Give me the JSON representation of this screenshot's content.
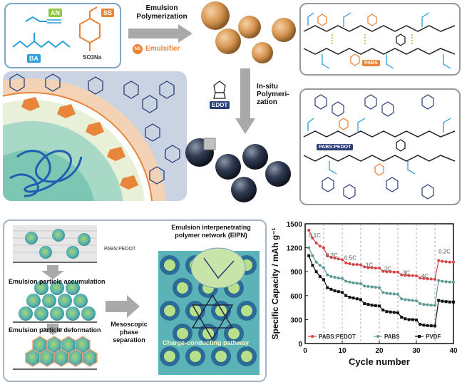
{
  "monomers": {
    "an": "AN",
    "ss": "SS",
    "ba": "BA",
    "so3na": "SO3Na",
    "emulsifier": "Emulsifier",
    "ns": "NS"
  },
  "steps": {
    "emulsion_polymerization": [
      "Emulsion",
      "Polymerization"
    ],
    "edot": "EDOT",
    "insitu_polymerization": [
      "In-situ",
      "Polymeri-",
      "zation"
    ]
  },
  "tags": {
    "pabs": "PABS",
    "pabs_pedot": "PABS:PEDOT",
    "pabs_pedot_small": "PABS:PEDOT",
    "so3": "SO3"
  },
  "eipn": {
    "title": [
      "Emulsion interpenetrating",
      "polymer network (EIPN)"
    ],
    "accumulation": "Emulsion particle accumulation",
    "deformation": "Emulsion particle deformation",
    "mesoscopic": [
      "Mesoscopic",
      "phase",
      "separation"
    ],
    "pathway": "Charge-conducting pathway"
  },
  "colors": {
    "orange": "#e8853a",
    "blue": "#2a9fd8",
    "green_badge": "#8dc63f",
    "panel_border": "#9a9a9a",
    "dark_sphere": "#2a3346",
    "pedot_red": "#d84343",
    "pabs_teal": "#5a9a94",
    "pvdf_black": "#111111"
  },
  "chart_data": {
    "type": "line",
    "xlabel": "Cycle number",
    "ylabel": "Specific Capacity / mAh g⁻¹",
    "xlim": [
      0,
      40
    ],
    "ylim": [
      0,
      1500
    ],
    "xticks": [
      0,
      10,
      20,
      30,
      40
    ],
    "yticks": [
      0,
      300,
      600,
      900,
      1200,
      1500
    ],
    "rate_labels": [
      {
        "text": "0.1C",
        "x": 2.6,
        "y": 1330
      },
      {
        "text": "0.2C",
        "x": 7.2,
        "y": 1080
      },
      {
        "text": "0.5C",
        "x": 12.2,
        "y": 1050
      },
      {
        "text": "1C",
        "x": 17.3,
        "y": 960
      },
      {
        "text": "2C",
        "x": 22.3,
        "y": 910
      },
      {
        "text": "3C",
        "x": 27.3,
        "y": 860
      },
      {
        "text": "4C",
        "x": 32.3,
        "y": 820
      },
      {
        "text": "0.2C",
        "x": 37.6,
        "y": 1130
      }
    ],
    "separators": [
      5,
      10,
      15,
      20,
      25,
      30,
      35
    ],
    "legend_position": "bottom",
    "series": [
      {
        "name": "PABS:PEDOT",
        "marker": "circle",
        "x": [
          1,
          2,
          3,
          4,
          5,
          6,
          7,
          8,
          9,
          10,
          11,
          12,
          13,
          14,
          15,
          16,
          17,
          18,
          19,
          20,
          21,
          22,
          23,
          24,
          25,
          26,
          27,
          28,
          29,
          30,
          31,
          32,
          33,
          34,
          35,
          36,
          37,
          38,
          39,
          40
        ],
        "values": [
          1420,
          1320,
          1260,
          1220,
          1200,
          1100,
          1080,
          1070,
          1060,
          1050,
          1010,
          1000,
          990,
          990,
          985,
          960,
          950,
          950,
          945,
          945,
          905,
          900,
          900,
          895,
          895,
          860,
          855,
          850,
          850,
          848,
          820,
          815,
          810,
          808,
          805,
          1040,
          1030,
          1025,
          1020,
          1020
        ]
      },
      {
        "name": "PABS",
        "marker": "circle",
        "x": [
          1,
          2,
          3,
          4,
          5,
          6,
          7,
          8,
          9,
          10,
          11,
          12,
          13,
          14,
          15,
          16,
          17,
          18,
          19,
          20,
          21,
          22,
          23,
          24,
          25,
          26,
          27,
          28,
          29,
          30,
          31,
          32,
          33,
          34,
          35,
          36,
          37,
          38,
          39,
          40
        ],
        "values": [
          1200,
          1100,
          1020,
          980,
          950,
          860,
          840,
          830,
          820,
          815,
          780,
          770,
          760,
          755,
          750,
          720,
          715,
          710,
          705,
          700,
          640,
          630,
          625,
          620,
          618,
          560,
          550,
          545,
          540,
          535,
          500,
          490,
          485,
          480,
          480,
          790,
          780,
          775,
          770,
          770
        ]
      },
      {
        "name": "PVDF",
        "marker": "square",
        "x": [
          1,
          2,
          3,
          4,
          5,
          6,
          7,
          8,
          9,
          10,
          11,
          12,
          13,
          14,
          15,
          16,
          17,
          18,
          19,
          20,
          21,
          22,
          23,
          24,
          25,
          26,
          27,
          28,
          29,
          30,
          31,
          32,
          33,
          34,
          35,
          36,
          37,
          38,
          39,
          40
        ],
        "values": [
          1100,
          980,
          900,
          840,
          800,
          700,
          680,
          660,
          650,
          640,
          600,
          580,
          570,
          560,
          550,
          500,
          490,
          480,
          475,
          470,
          420,
          400,
          395,
          390,
          385,
          330,
          310,
          300,
          300,
          295,
          240,
          230,
          225,
          222,
          220,
          540,
          530,
          525,
          520,
          520
        ]
      }
    ]
  }
}
